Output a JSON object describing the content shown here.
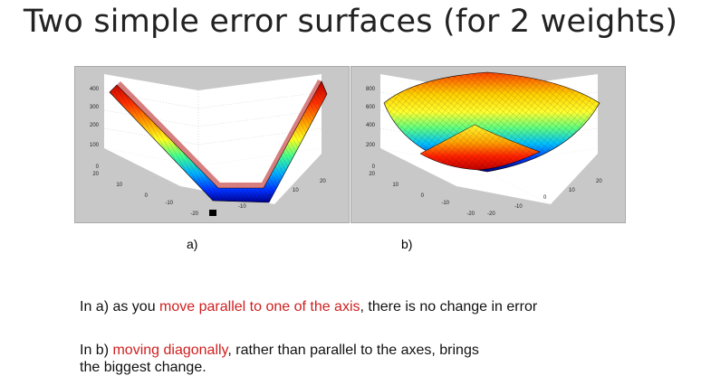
{
  "title": "Two simple error surfaces (for 2 weights)",
  "figures": [
    {
      "caption": "a)",
      "z_ticks": [
        "400",
        "300",
        "200",
        "100",
        "0"
      ],
      "x_ticks": [
        "20",
        "10",
        "0",
        "-10",
        "-20"
      ],
      "y_ticks": [
        "-10",
        "0",
        "10",
        "20"
      ]
    },
    {
      "caption": "b)",
      "z_ticks": [
        "800",
        "600",
        "400",
        "200",
        "0"
      ],
      "x_ticks": [
        "20",
        "10",
        "0",
        "-10",
        "-20"
      ],
      "y_ticks": [
        "-20",
        "-10",
        "0",
        "10",
        "20"
      ]
    }
  ],
  "text": {
    "line1_a": "In a) as you ",
    "line1_red": "move parallel to one of the axis",
    "line1_b": ", there is no change in error",
    "line2_a": "In b) ",
    "line2_red": "moving diagonally",
    "line2_b": ", rather than parallel to the axes, brings",
    "line3": "the biggest change."
  },
  "colors": {
    "accent_red": "#d02020",
    "plot_bg": "#c8c8c8"
  }
}
